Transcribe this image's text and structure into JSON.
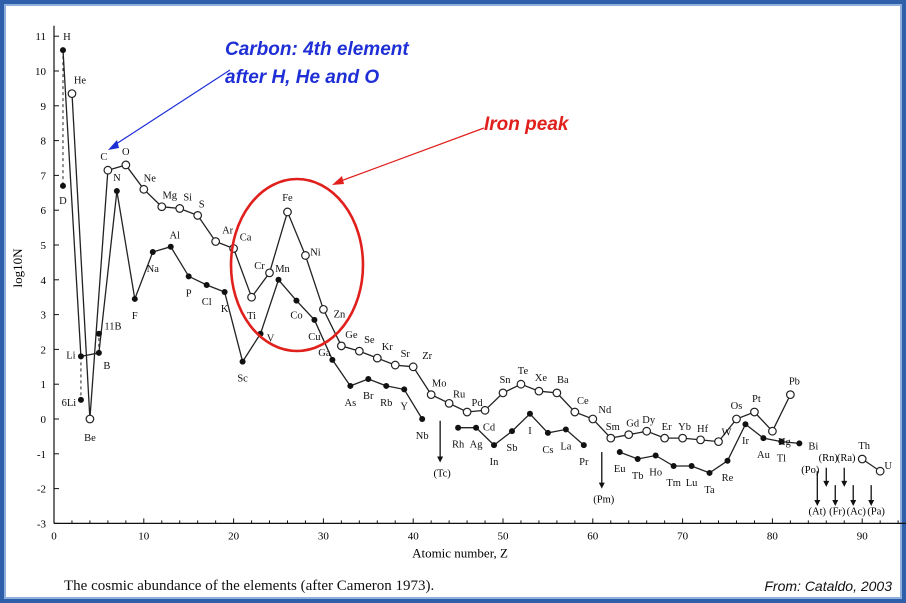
{
  "caption": "The cosmic abundance of the elements (after Cameron 1973).",
  "source": "From: Cataldo, 2003",
  "annotations": {
    "carbon_line1": "Carbon:  4th element",
    "carbon_line2": "after H, He and O",
    "iron_peak": "Iron peak",
    "carbon_color": "#1f2fd6",
    "iron_color": "#e0201c"
  },
  "chart_data": {
    "type": "line",
    "xlabel": "Atomic number, Z",
    "ylabel": "log10N",
    "xlim": [
      0,
      95
    ],
    "ylim": [
      -3,
      11.3
    ],
    "xticks": [
      0,
      10,
      20,
      30,
      40,
      50,
      60,
      70,
      80,
      90
    ],
    "yticks": [
      -3,
      -2,
      -1,
      0,
      1,
      2,
      3,
      4,
      5,
      6,
      7,
      8,
      9,
      10,
      11
    ],
    "series": [
      {
        "marker": "open",
        "points": [
          {
            "z": 2,
            "v": 9.35,
            "label": "He"
          },
          {
            "z": 4,
            "v": 0.0,
            "label": "Be"
          },
          {
            "z": 6,
            "v": 7.15,
            "label": "C"
          },
          {
            "z": 8,
            "v": 7.3,
            "label": "O"
          },
          {
            "z": 10,
            "v": 6.6,
            "label": "Ne"
          },
          {
            "z": 12,
            "v": 6.1,
            "label": "Mg"
          },
          {
            "z": 14,
            "v": 6.05,
            "label": "Si"
          },
          {
            "z": 16,
            "v": 5.85,
            "label": "S"
          },
          {
            "z": 18,
            "v": 5.1,
            "label": "Ar"
          },
          {
            "z": 20,
            "v": 4.9,
            "label": "Ca"
          },
          {
            "z": 22,
            "v": 3.5,
            "label": "Ti"
          },
          {
            "z": 24,
            "v": 4.2,
            "label": "Cr"
          },
          {
            "z": 26,
            "v": 5.95,
            "label": "Fe"
          },
          {
            "z": 28,
            "v": 4.7,
            "label": "Ni"
          },
          {
            "z": 30,
            "v": 3.15,
            "label": "Zn"
          },
          {
            "z": 32,
            "v": 2.1,
            "label": "Ge"
          },
          {
            "z": 34,
            "v": 1.95,
            "label": "Se"
          },
          {
            "z": 36,
            "v": 1.75,
            "label": "Kr"
          },
          {
            "z": 38,
            "v": 1.55,
            "label": "Sr"
          },
          {
            "z": 40,
            "v": 1.5,
            "label": "Zr"
          },
          {
            "z": 42,
            "v": 0.7,
            "label": "Mo"
          },
          {
            "z": 44,
            "v": 0.45,
            "label": "Ru"
          },
          {
            "z": 46,
            "v": 0.2,
            "label": "Pd"
          },
          {
            "z": 48,
            "v": 0.25,
            "label": "Cd"
          },
          {
            "z": 50,
            "v": 0.75,
            "label": "Sn"
          },
          {
            "z": 52,
            "v": 1.0,
            "label": "Te"
          },
          {
            "z": 54,
            "v": 0.8,
            "label": "Xe"
          },
          {
            "z": 56,
            "v": 0.75,
            "label": "Ba"
          },
          {
            "z": 58,
            "v": 0.2,
            "label": "Ce"
          },
          {
            "z": 60,
            "v": 0.0,
            "label": "Nd"
          },
          {
            "z": 62,
            "v": -0.55,
            "label": "Sm"
          },
          {
            "z": 64,
            "v": -0.45,
            "label": "Gd"
          },
          {
            "z": 66,
            "v": -0.35,
            "label": "Dy"
          },
          {
            "z": 68,
            "v": -0.55,
            "label": "Er"
          },
          {
            "z": 70,
            "v": -0.55,
            "label": "Yb"
          },
          {
            "z": 72,
            "v": -0.6,
            "label": "Hf"
          },
          {
            "z": 74,
            "v": -0.65,
            "label": "W"
          },
          {
            "z": 76,
            "v": 0.0,
            "label": "Os"
          },
          {
            "z": 78,
            "v": 0.2,
            "label": "Pt"
          },
          {
            "z": 80,
            "v": -0.35,
            "label": "Hg"
          },
          {
            "z": 82,
            "v": 0.7,
            "label": "Pb"
          }
        ]
      },
      {
        "marker": "filled",
        "points": [
          {
            "z": 1,
            "v": 10.6,
            "label": "H"
          },
          {
            "z": 3,
            "v": 1.8,
            "label": "Li"
          },
          {
            "z": 5,
            "v": 1.9,
            "label": "B"
          },
          {
            "z": 7,
            "v": 6.55,
            "label": "N"
          },
          {
            "z": 9,
            "v": 3.45,
            "label": "F"
          },
          {
            "z": 11,
            "v": 4.8,
            "label": "Na"
          },
          {
            "z": 13,
            "v": 4.95,
            "label": "Al"
          },
          {
            "z": 15,
            "v": 4.1,
            "label": "P"
          },
          {
            "z": 17,
            "v": 3.85,
            "label": "Cl"
          },
          {
            "z": 19,
            "v": 3.65,
            "label": "K"
          },
          {
            "z": 21,
            "v": 1.65,
            "label": "Sc"
          },
          {
            "z": 23,
            "v": 2.45,
            "label": "V"
          },
          {
            "z": 25,
            "v": 4.0,
            "label": "Mn"
          },
          {
            "z": 27,
            "v": 3.4,
            "label": "Co"
          },
          {
            "z": 29,
            "v": 2.85,
            "label": "Cu"
          },
          {
            "z": 31,
            "v": 1.7,
            "label": "Ga"
          },
          {
            "z": 33,
            "v": 0.95,
            "label": "As"
          },
          {
            "z": 35,
            "v": 1.15,
            "label": "Br"
          },
          {
            "z": 37,
            "v": 0.95,
            "label": "Rb"
          },
          {
            "z": 39,
            "v": 0.85,
            "label": "Y"
          },
          {
            "z": 41,
            "v": 0.0,
            "label": "Nb"
          },
          {
            "z": 45,
            "v": -0.25,
            "label": "Rh"
          },
          {
            "z": 47,
            "v": -0.25,
            "label": "Ag"
          },
          {
            "z": 49,
            "v": -0.75,
            "label": "In"
          },
          {
            "z": 51,
            "v": -0.35,
            "label": "Sb"
          },
          {
            "z": 53,
            "v": 0.15,
            "label": "I"
          },
          {
            "z": 55,
            "v": -0.4,
            "label": "Cs"
          },
          {
            "z": 57,
            "v": -0.3,
            "label": "La"
          },
          {
            "z": 59,
            "v": -0.75,
            "label": "Pr"
          },
          {
            "z": 63,
            "v": -0.95,
            "label": "Eu"
          },
          {
            "z": 65,
            "v": -1.15,
            "label": "Tb"
          },
          {
            "z": 67,
            "v": -1.05,
            "label": "Ho"
          },
          {
            "z": 69,
            "v": -1.35,
            "label": "Tm"
          },
          {
            "z": 71,
            "v": -1.35,
            "label": "Lu"
          },
          {
            "z": 73,
            "v": -1.55,
            "label": "Ta"
          },
          {
            "z": 75,
            "v": -1.2,
            "label": "Re"
          },
          {
            "z": 77,
            "v": -0.15,
            "label": "Ir"
          },
          {
            "z": 79,
            "v": -0.55,
            "label": "Au"
          },
          {
            "z": 81,
            "v": -0.65,
            "label": "Tl"
          },
          {
            "z": 83,
            "v": -0.7,
            "label": "Bi"
          }
        ]
      }
    ],
    "isotope_points": [
      {
        "z": 1,
        "v": 6.7,
        "label": "D"
      },
      {
        "z": 3,
        "v": 0.55,
        "label": "6Li"
      },
      {
        "z": 5,
        "v": 2.45,
        "label": "11B"
      }
    ],
    "unstable_elements": [
      {
        "z": 43,
        "label": "(Tc)"
      },
      {
        "z": 61,
        "label": "(Pm)"
      },
      {
        "z": 84,
        "label": "(Po)"
      },
      {
        "z": 85,
        "label": "(At)"
      },
      {
        "z": 86,
        "label": "(Rn)"
      },
      {
        "z": 87,
        "label": "(Fr)"
      },
      {
        "z": 88,
        "label": "(Ra)"
      },
      {
        "z": 89,
        "label": "(Ac)"
      },
      {
        "z": 91,
        "label": "(Pa)"
      }
    ],
    "trailing_points": [
      {
        "z": 90,
        "v": -1.15,
        "label": "Th"
      },
      {
        "z": 92,
        "v": -1.5,
        "label": "U"
      }
    ]
  }
}
